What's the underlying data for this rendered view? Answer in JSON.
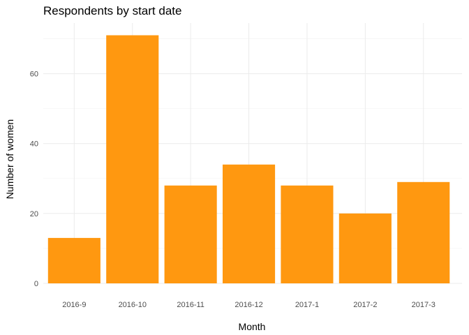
{
  "chart_data": {
    "type": "bar",
    "title": "Respondents by start date",
    "xlabel": "Month",
    "ylabel": "Number of women",
    "categories": [
      "2016-9",
      "2016-10",
      "2016-11",
      "2016-12",
      "2017-1",
      "2017-2",
      "2017-3"
    ],
    "values": [
      13,
      71,
      28,
      34,
      28,
      20,
      29
    ],
    "ylim": [
      0,
      74.5
    ],
    "yticks": [
      0,
      20,
      40,
      60
    ],
    "ytick_labels": [
      "0",
      "20",
      "40",
      "60"
    ],
    "grid": true,
    "bar_color": "#FF9810"
  }
}
